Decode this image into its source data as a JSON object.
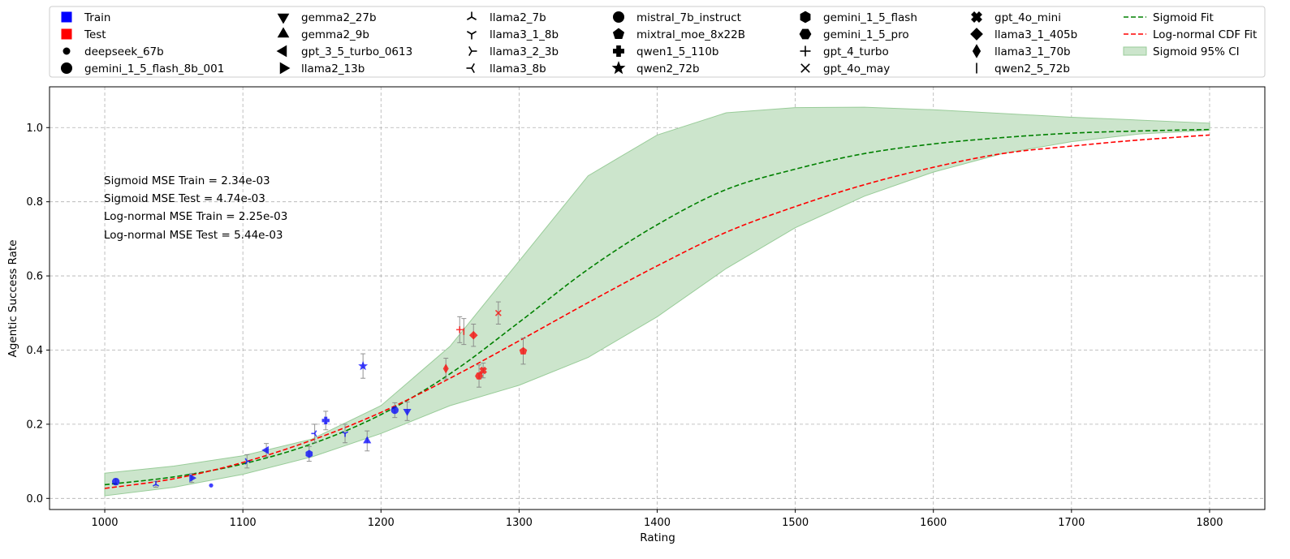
{
  "chart_data": {
    "type": "scatter",
    "xlabel": "Rating",
    "ylabel": "Agentic Success Rate",
    "xlim": [
      960,
      1840
    ],
    "ylim": [
      -0.03,
      1.11
    ],
    "xticks": [
      1000,
      1100,
      1200,
      1300,
      1400,
      1500,
      1600,
      1700,
      1800
    ],
    "yticks": [
      0.0,
      0.2,
      0.4,
      0.6,
      0.8,
      1.0
    ],
    "grid": true,
    "legend_placement": "top, above plot, 7 columns",
    "colors": {
      "train": "#0000ff",
      "test": "#ff0000",
      "sigmoid": "#008000",
      "lognormal": "#ff0000",
      "ci_fill": "#cce5cc",
      "ci_edge": "#99cc99"
    },
    "annotations": [
      "Sigmoid MSE Train = 2.34e-03",
      "Sigmoid MSE Test = 4.74e-03",
      "Log-normal MSE Train = 2.25e-03",
      "Log-normal MSE Test = 5.44e-03"
    ],
    "legend": {
      "split": [
        {
          "label": "Train",
          "marker": "square",
          "color": "#0000ff"
        },
        {
          "label": "Test",
          "marker": "square",
          "color": "#ff0000"
        }
      ],
      "models": [
        {
          "label": "deepseek_67b",
          "marker": "point"
        },
        {
          "label": "gemini_1_5_flash_8b_001",
          "marker": "circle"
        },
        {
          "label": "gemma2_27b",
          "marker": "triangle_down"
        },
        {
          "label": "gemma2_9b",
          "marker": "triangle_up"
        },
        {
          "label": "gpt_3_5_turbo_0613",
          "marker": "triangle_left"
        },
        {
          "label": "llama2_13b",
          "marker": "triangle_right"
        },
        {
          "label": "llama2_7b",
          "marker": "tri_down"
        },
        {
          "label": "llama3_1_8b",
          "marker": "tri_up"
        },
        {
          "label": "llama3_2_3b",
          "marker": "tri_left"
        },
        {
          "label": "llama3_8b",
          "marker": "tri_right"
        },
        {
          "label": "mistral_7b_instruct",
          "marker": "octagon"
        },
        {
          "label": "mixtral_moe_8x22B",
          "marker": "pentagon"
        },
        {
          "label": "qwen1_5_110b",
          "marker": "plus_filled"
        },
        {
          "label": "qwen2_72b",
          "marker": "star"
        },
        {
          "label": "gemini_1_5_flash",
          "marker": "hexagon1"
        },
        {
          "label": "gemini_1_5_pro",
          "marker": "hexagon2"
        },
        {
          "label": "gpt_4_turbo",
          "marker": "plus"
        },
        {
          "label": "gpt_4o_may",
          "marker": "x"
        },
        {
          "label": "gpt_4o_mini",
          "marker": "x_filled"
        },
        {
          "label": "llama3_1_405b",
          "marker": "diamond"
        },
        {
          "label": "llama3_1_70b",
          "marker": "thin_diamond"
        },
        {
          "label": "qwen2_5_72b",
          "marker": "vline"
        }
      ],
      "fits": [
        {
          "label": "Sigmoid Fit",
          "kind": "line",
          "color": "#008000"
        },
        {
          "label": "Log-normal CDF Fit",
          "kind": "line",
          "color": "#ff0000"
        },
        {
          "label": "Sigmoid 95% CI",
          "kind": "patch",
          "color": "#cce5cc"
        }
      ]
    },
    "points": [
      {
        "model": "gemini_1_5_flash_8b_001",
        "split": "train",
        "x": 1008,
        "y": 0.045,
        "err": 0.008,
        "marker": "circle"
      },
      {
        "model": "llama2_7b",
        "split": "train",
        "x": 1037,
        "y": 0.038,
        "err": 0.008,
        "marker": "tri_down"
      },
      {
        "model": "llama2_13b",
        "split": "train",
        "x": 1063,
        "y": 0.055,
        "err": 0.012,
        "marker": "triangle_right"
      },
      {
        "model": "deepseek_67b",
        "split": "train",
        "x": 1077,
        "y": 0.035,
        "err": 0.0,
        "marker": "point"
      },
      {
        "model": "llama3_2_3b",
        "split": "train",
        "x": 1103,
        "y": 0.1,
        "err": 0.018,
        "marker": "tri_left"
      },
      {
        "model": "gpt_3_5_turbo_0613",
        "split": "train",
        "x": 1117,
        "y": 0.13,
        "err": 0.018,
        "marker": "triangle_left"
      },
      {
        "model": "gemini_1_5_flash",
        "split": "train",
        "x": 1148,
        "y": 0.12,
        "err": 0.02,
        "marker": "hexagon1"
      },
      {
        "model": "llama3_8b",
        "split": "train",
        "x": 1152,
        "y": 0.175,
        "err": 0.025,
        "marker": "tri_right"
      },
      {
        "model": "qwen1_5_110b",
        "split": "train",
        "x": 1160,
        "y": 0.21,
        "err": 0.025,
        "marker": "plus_filled"
      },
      {
        "model": "llama3_1_8b",
        "split": "train",
        "x": 1174,
        "y": 0.175,
        "err": 0.025,
        "marker": "tri_up"
      },
      {
        "model": "qwen2_72b",
        "split": "train",
        "x": 1187,
        "y": 0.357,
        "err": 0.033,
        "marker": "star"
      },
      {
        "model": "gemma2_9b",
        "split": "train",
        "x": 1190,
        "y": 0.155,
        "err": 0.027,
        "marker": "triangle_up"
      },
      {
        "model": "mistral_7b_instruct",
        "split": "train",
        "x": 1210,
        "y": 0.238,
        "err": 0.02,
        "marker": "octagon"
      },
      {
        "model": "gemma2_27b",
        "split": "train",
        "x": 1219,
        "y": 0.235,
        "err": 0.025,
        "marker": "triangle_down"
      },
      {
        "model": "llama3_1_70b",
        "split": "test",
        "x": 1247,
        "y": 0.35,
        "err": 0.028,
        "marker": "thin_diamond"
      },
      {
        "model": "gpt_4_turbo",
        "split": "test",
        "x": 1257,
        "y": 0.455,
        "err": 0.035,
        "marker": "plus"
      },
      {
        "model": "qwen2_5_72b",
        "split": "test",
        "x": 1260,
        "y": 0.45,
        "err": 0.035,
        "marker": "vline"
      },
      {
        "model": "llama3_1_405b",
        "split": "test",
        "x": 1267,
        "y": 0.44,
        "err": 0.03,
        "marker": "diamond"
      },
      {
        "model": "gemini_1_5_pro",
        "split": "test",
        "x": 1271,
        "y": 0.33,
        "err": 0.03,
        "marker": "hexagon2"
      },
      {
        "model": "gpt_4o_mini",
        "split": "test",
        "x": 1274,
        "y": 0.345,
        "err": 0.02,
        "marker": "x_filled"
      },
      {
        "model": "gpt_4o_may",
        "split": "test",
        "x": 1285,
        "y": 0.5,
        "err": 0.03,
        "marker": "x"
      },
      {
        "model": "mixtral_moe_8x22B",
        "split": "test",
        "x": 1303,
        "y": 0.397,
        "err": 0.035,
        "marker": "pentagon"
      }
    ],
    "series": [
      {
        "name": "Sigmoid Fit",
        "x": [
          1000,
          1050,
          1100,
          1150,
          1200,
          1250,
          1300,
          1350,
          1400,
          1450,
          1500,
          1550,
          1600,
          1650,
          1700,
          1750,
          1800
        ],
        "y": [
          0.037,
          0.058,
          0.093,
          0.147,
          0.226,
          0.336,
          0.475,
          0.618,
          0.738,
          0.833,
          0.888,
          0.93,
          0.956,
          0.973,
          0.985,
          0.991,
          0.995
        ]
      },
      {
        "name": "Log-normal CDF Fit",
        "x": [
          1000,
          1050,
          1100,
          1150,
          1200,
          1250,
          1300,
          1350,
          1400,
          1450,
          1500,
          1550,
          1600,
          1650,
          1700,
          1750,
          1800
        ],
        "y": [
          0.027,
          0.053,
          0.097,
          0.157,
          0.232,
          0.324,
          0.425,
          0.528,
          0.627,
          0.718,
          0.787,
          0.846,
          0.893,
          0.93,
          0.95,
          0.967,
          0.98
        ]
      },
      {
        "name": "Sigmoid 95% CI",
        "x": [
          1000,
          1050,
          1100,
          1150,
          1200,
          1250,
          1300,
          1350,
          1400,
          1450,
          1500,
          1550,
          1600,
          1650,
          1700,
          1750,
          1800
        ],
        "upper": [
          0.068,
          0.087,
          0.115,
          0.16,
          0.25,
          0.41,
          0.64,
          0.87,
          0.98,
          1.04,
          1.054,
          1.055,
          1.048,
          1.038,
          1.028,
          1.02,
          1.012
        ],
        "lower": [
          0.007,
          0.03,
          0.065,
          0.112,
          0.175,
          0.25,
          0.305,
          0.38,
          0.49,
          0.62,
          0.73,
          0.815,
          0.88,
          0.93,
          0.962,
          0.983,
          0.993
        ]
      }
    ]
  }
}
